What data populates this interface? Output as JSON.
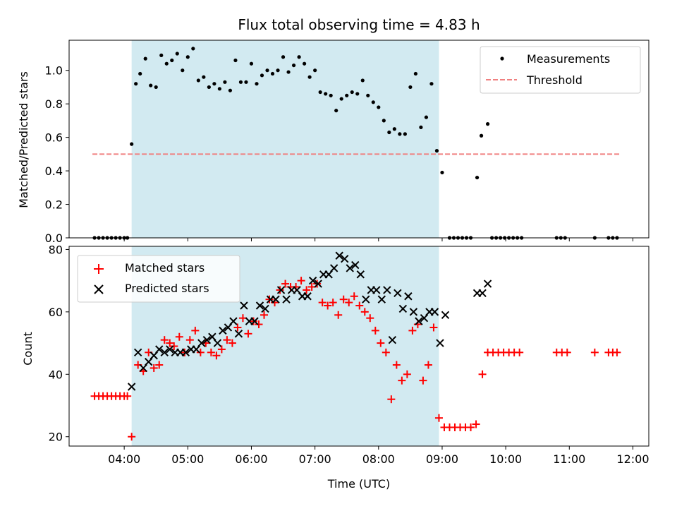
{
  "chart_data": [
    {
      "type": "scatter",
      "title": "Flux total observing time = 4.83 h",
      "xlabel": "",
      "ylabel": "Matched/Predicted stars",
      "xlim": [
        "03:08",
        "12:15"
      ],
      "ylim": [
        0,
        1.18
      ],
      "yticks": [
        "0.0",
        "0.2",
        "0.4",
        "0.6",
        "0.8",
        "1.0"
      ],
      "ytick_values": [
        0,
        0.2,
        0.4,
        0.6,
        0.8,
        1.0
      ],
      "legend": {
        "placement": "upper right",
        "entries": [
          "Measurements",
          "Threshold"
        ]
      },
      "colors": {
        "measurements": "#000000",
        "threshold": "#f08080",
        "shade": "#add8e6"
      },
      "shaded_interval": [
        "04:07",
        "08:57"
      ],
      "threshold": {
        "name": "Threshold",
        "y": 0.5,
        "x_range": [
          "03:30",
          "11:48"
        ]
      },
      "series": [
        {
          "name": "Measurements",
          "marker": "dot",
          "points": [
            [
              "03:32",
              0
            ],
            [
              "03:36",
              0
            ],
            [
              "03:40",
              0
            ],
            [
              "03:44",
              0
            ],
            [
              "03:48",
              0
            ],
            [
              "03:52",
              0
            ],
            [
              "03:56",
              0
            ],
            [
              "04:00",
              0
            ],
            [
              "04:03",
              0
            ],
            [
              "04:07",
              0.56
            ],
            [
              "04:11",
              0.92
            ],
            [
              "04:15",
              0.98
            ],
            [
              "04:20",
              1.07
            ],
            [
              "04:25",
              0.91
            ],
            [
              "04:30",
              0.9
            ],
            [
              "04:35",
              1.09
            ],
            [
              "04:40",
              1.04
            ],
            [
              "04:45",
              1.06
            ],
            [
              "04:50",
              1.1
            ],
            [
              "04:55",
              1.0
            ],
            [
              "05:00",
              1.08
            ],
            [
              "05:05",
              1.13
            ],
            [
              "05:10",
              0.94
            ],
            [
              "05:15",
              0.96
            ],
            [
              "05:20",
              0.9
            ],
            [
              "05:25",
              0.92
            ],
            [
              "05:30",
              0.89
            ],
            [
              "05:35",
              0.93
            ],
            [
              "05:40",
              0.88
            ],
            [
              "05:45",
              1.06
            ],
            [
              "05:50",
              0.93
            ],
            [
              "05:55",
              0.93
            ],
            [
              "06:00",
              1.04
            ],
            [
              "06:05",
              0.92
            ],
            [
              "06:10",
              0.97
            ],
            [
              "06:15",
              1.0
            ],
            [
              "06:20",
              0.98
            ],
            [
              "06:25",
              1.0
            ],
            [
              "06:30",
              1.08
            ],
            [
              "06:35",
              0.99
            ],
            [
              "06:40",
              1.03
            ],
            [
              "06:45",
              1.08
            ],
            [
              "06:50",
              1.04
            ],
            [
              "06:55",
              0.96
            ],
            [
              "07:00",
              1.0
            ],
            [
              "07:05",
              0.87
            ],
            [
              "07:10",
              0.86
            ],
            [
              "07:15",
              0.85
            ],
            [
              "07:20",
              0.76
            ],
            [
              "07:25",
              0.83
            ],
            [
              "07:30",
              0.85
            ],
            [
              "07:35",
              0.87
            ],
            [
              "07:40",
              0.86
            ],
            [
              "07:45",
              0.94
            ],
            [
              "07:50",
              0.85
            ],
            [
              "07:55",
              0.81
            ],
            [
              "08:00",
              0.78
            ],
            [
              "08:05",
              0.7
            ],
            [
              "08:10",
              0.63
            ],
            [
              "08:15",
              0.65
            ],
            [
              "08:20",
              0.62
            ],
            [
              "08:25",
              0.62
            ],
            [
              "08:30",
              0.9
            ],
            [
              "08:35",
              0.98
            ],
            [
              "08:40",
              0.66
            ],
            [
              "08:45",
              0.72
            ],
            [
              "08:50",
              0.92
            ],
            [
              "08:55",
              0.52
            ],
            [
              "09:00",
              0.39
            ],
            [
              "09:07",
              0
            ],
            [
              "09:11",
              0
            ],
            [
              "09:15",
              0
            ],
            [
              "09:19",
              0
            ],
            [
              "09:23",
              0
            ],
            [
              "09:27",
              0
            ],
            [
              "09:33",
              0.36
            ],
            [
              "09:37",
              0.61
            ],
            [
              "09:43",
              0.68
            ],
            [
              "09:47",
              0
            ],
            [
              "09:51",
              0
            ],
            [
              "09:55",
              0
            ],
            [
              "09:59",
              0
            ],
            [
              "10:03",
              0
            ],
            [
              "10:07",
              0
            ],
            [
              "10:11",
              0
            ],
            [
              "10:15",
              0
            ],
            [
              "10:48",
              0
            ],
            [
              "10:52",
              0
            ],
            [
              "10:56",
              0
            ],
            [
              "11:24",
              0
            ],
            [
              "11:37",
              0
            ],
            [
              "11:41",
              0
            ],
            [
              "11:45",
              0
            ]
          ]
        }
      ]
    },
    {
      "type": "scatter",
      "title": "",
      "xlabel": "Time (UTC)",
      "ylabel": "Count",
      "xlim": [
        "03:08",
        "12:15"
      ],
      "ylim": [
        17,
        81
      ],
      "yticks": [
        "20",
        "40",
        "60",
        "80"
      ],
      "ytick_values": [
        20,
        40,
        60,
        80
      ],
      "xticks": [
        "04:00",
        "05:00",
        "06:00",
        "07:00",
        "08:00",
        "09:00",
        "10:00",
        "11:00",
        "12:00"
      ],
      "legend": {
        "placement": "upper left",
        "entries": [
          "Matched stars",
          "Predicted stars"
        ]
      },
      "colors": {
        "matched": "#ff0000",
        "predicted": "#000000",
        "shade": "#add8e6"
      },
      "shaded_interval": [
        "04:07",
        "08:57"
      ],
      "series": [
        {
          "name": "Matched stars",
          "marker": "plus",
          "points": [
            [
              "03:32",
              33
            ],
            [
              "03:36",
              33
            ],
            [
              "03:40",
              33
            ],
            [
              "03:44",
              33
            ],
            [
              "03:48",
              33
            ],
            [
              "03:52",
              33
            ],
            [
              "03:56",
              33
            ],
            [
              "04:00",
              33
            ],
            [
              "04:03",
              33
            ],
            [
              "04:07",
              20
            ],
            [
              "04:13",
              43
            ],
            [
              "04:18",
              41
            ],
            [
              "04:23",
              47
            ],
            [
              "04:28",
              42
            ],
            [
              "04:33",
              43
            ],
            [
              "04:38",
              51
            ],
            [
              "04:43",
              50
            ],
            [
              "04:47",
              49
            ],
            [
              "04:52",
              52
            ],
            [
              "04:57",
              47
            ],
            [
              "05:02",
              51
            ],
            [
              "05:07",
              54
            ],
            [
              "05:12",
              47
            ],
            [
              "05:17",
              50
            ],
            [
              "05:22",
              47
            ],
            [
              "05:27",
              46
            ],
            [
              "05:32",
              48
            ],
            [
              "05:37",
              51
            ],
            [
              "05:42",
              50
            ],
            [
              "05:47",
              55
            ],
            [
              "05:52",
              58
            ],
            [
              "05:57",
              53
            ],
            [
              "06:02",
              57
            ],
            [
              "06:07",
              56
            ],
            [
              "06:12",
              59
            ],
            [
              "06:17",
              64
            ],
            [
              "06:22",
              63
            ],
            [
              "06:27",
              67
            ],
            [
              "06:32",
              69
            ],
            [
              "06:37",
              68
            ],
            [
              "06:42",
              68
            ],
            [
              "06:47",
              70
            ],
            [
              "06:52",
              67
            ],
            [
              "06:57",
              68
            ],
            [
              "07:02",
              69
            ],
            [
              "07:07",
              63
            ],
            [
              "07:12",
              62
            ],
            [
              "07:17",
              63
            ],
            [
              "07:22",
              59
            ],
            [
              "07:27",
              64
            ],
            [
              "07:32",
              63
            ],
            [
              "07:37",
              65
            ],
            [
              "07:42",
              62
            ],
            [
              "07:47",
              60
            ],
            [
              "07:52",
              58
            ],
            [
              "07:57",
              54
            ],
            [
              "08:02",
              50
            ],
            [
              "08:07",
              47
            ],
            [
              "08:12",
              32
            ],
            [
              "08:17",
              43
            ],
            [
              "08:22",
              38
            ],
            [
              "08:27",
              40
            ],
            [
              "08:32",
              54
            ],
            [
              "08:37",
              56
            ],
            [
              "08:42",
              38
            ],
            [
              "08:47",
              43
            ],
            [
              "08:52",
              55
            ],
            [
              "08:57",
              26
            ],
            [
              "09:02",
              23
            ],
            [
              "09:07",
              23
            ],
            [
              "09:12",
              23
            ],
            [
              "09:17",
              23
            ],
            [
              "09:22",
              23
            ],
            [
              "09:27",
              23
            ],
            [
              "09:32",
              24
            ],
            [
              "09:38",
              40
            ],
            [
              "09:43",
              47
            ],
            [
              "09:48",
              47
            ],
            [
              "09:53",
              47
            ],
            [
              "09:58",
              47
            ],
            [
              "10:03",
              47
            ],
            [
              "10:08",
              47
            ],
            [
              "10:13",
              47
            ],
            [
              "10:48",
              47
            ],
            [
              "10:53",
              47
            ],
            [
              "10:58",
              47
            ],
            [
              "11:24",
              47
            ],
            [
              "11:37",
              47
            ],
            [
              "11:41",
              47
            ],
            [
              "11:45",
              47
            ]
          ]
        },
        {
          "name": "Predicted stars",
          "marker": "x",
          "points": [
            [
              "04:07",
              36
            ],
            [
              "04:13",
              47
            ],
            [
              "04:18",
              42
            ],
            [
              "04:23",
              44
            ],
            [
              "04:28",
              46
            ],
            [
              "04:33",
              48
            ],
            [
              "04:38",
              47
            ],
            [
              "04:43",
              48
            ],
            [
              "04:48",
              47
            ],
            [
              "04:53",
              47
            ],
            [
              "04:58",
              47
            ],
            [
              "05:03",
              48
            ],
            [
              "05:08",
              48
            ],
            [
              "05:13",
              50
            ],
            [
              "05:18",
              51
            ],
            [
              "05:23",
              52
            ],
            [
              "05:28",
              50
            ],
            [
              "05:33",
              54
            ],
            [
              "05:38",
              55
            ],
            [
              "05:43",
              57
            ],
            [
              "05:48",
              53
            ],
            [
              "05:53",
              62
            ],
            [
              "05:58",
              57
            ],
            [
              "06:03",
              57
            ],
            [
              "06:08",
              62
            ],
            [
              "06:13",
              61
            ],
            [
              "06:18",
              64
            ],
            [
              "06:23",
              64
            ],
            [
              "06:28",
              67
            ],
            [
              "06:33",
              64
            ],
            [
              "06:38",
              67
            ],
            [
              "06:43",
              67
            ],
            [
              "06:48",
              65
            ],
            [
              "06:53",
              65
            ],
            [
              "06:58",
              70
            ],
            [
              "07:03",
              69
            ],
            [
              "07:08",
              72
            ],
            [
              "07:13",
              72
            ],
            [
              "07:18",
              74
            ],
            [
              "07:23",
              78
            ],
            [
              "07:28",
              77
            ],
            [
              "07:33",
              74
            ],
            [
              "07:38",
              75
            ],
            [
              "07:43",
              72
            ],
            [
              "07:48",
              64
            ],
            [
              "07:53",
              67
            ],
            [
              "07:58",
              67
            ],
            [
              "08:03",
              64
            ],
            [
              "08:08",
              67
            ],
            [
              "08:13",
              51
            ],
            [
              "08:18",
              66
            ],
            [
              "08:23",
              61
            ],
            [
              "08:28",
              65
            ],
            [
              "08:33",
              60
            ],
            [
              "08:38",
              57
            ],
            [
              "08:43",
              58
            ],
            [
              "08:48",
              60
            ],
            [
              "08:53",
              60
            ],
            [
              "08:58",
              50
            ],
            [
              "09:03",
              59
            ],
            [
              "09:33",
              66
            ],
            [
              "09:38",
              66
            ],
            [
              "09:43",
              69
            ]
          ]
        }
      ]
    }
  ]
}
